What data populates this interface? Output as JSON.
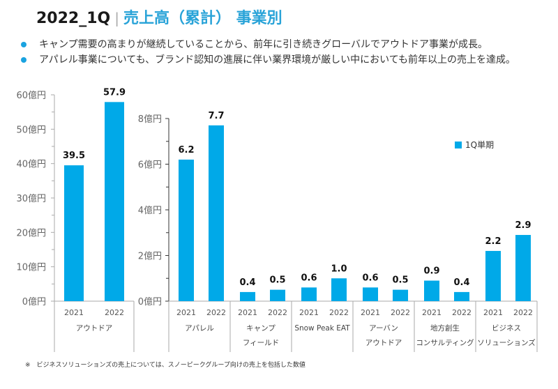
{
  "header": {
    "period": "2022_1Q",
    "separator": "|",
    "title": "売上高（累計） 事業別"
  },
  "bullets": [
    "キャンプ需要の高まりが継続していることから、前年に引き続きグローバルでアウトドア事業が成長。",
    "アパレル事業についても、ブランド認知の進展に伴い業界環境が厳しい中においても前年以上の売上を達成。"
  ],
  "footnote": "※　ビジネスソリューションズの売上については、スノーピークグループ向けの売上を包括した数値",
  "colors": {
    "bar": "#00a9e8",
    "accent": "#29a3d8"
  },
  "chart_data": [
    {
      "type": "bar",
      "title": "アウトドア",
      "unit": "億円",
      "ylim": [
        0,
        60
      ],
      "yticks": [
        "0億円",
        "10億円",
        "20億円",
        "30億円",
        "40億円",
        "50億円",
        "60億円"
      ],
      "ytick_values": [
        0,
        10,
        20,
        30,
        40,
        50,
        60
      ],
      "groups": [
        {
          "label": [
            "アウトドア"
          ],
          "categories": [
            "2021",
            "2022"
          ],
          "values": [
            39.5,
            57.9
          ],
          "labels": [
            "39.5",
            "57.9"
          ]
        }
      ]
    },
    {
      "type": "bar",
      "unit": "億円",
      "ylim": [
        0,
        8
      ],
      "yticks": [
        "0億円",
        "2億円",
        "4億円",
        "6億円",
        "8億円"
      ],
      "ytick_values": [
        0,
        2,
        4,
        6,
        8
      ],
      "legend": {
        "label": "1Q単期",
        "position": "top-right"
      },
      "groups": [
        {
          "label": [
            "アパレル"
          ],
          "categories": [
            "2021",
            "2022"
          ],
          "values": [
            6.2,
            7.7
          ],
          "labels": [
            "6.2",
            "7.7"
          ]
        },
        {
          "label": [
            "キャンプ",
            "フィールド"
          ],
          "categories": [
            "2021",
            "2022"
          ],
          "values": [
            0.4,
            0.5
          ],
          "labels": [
            "0.4",
            "0.5"
          ]
        },
        {
          "label": [
            "Snow Peak EAT"
          ],
          "categories": [
            "2021",
            "2022"
          ],
          "values": [
            0.6,
            1.0
          ],
          "labels": [
            "0.6",
            "1.0"
          ]
        },
        {
          "label": [
            "アーバン",
            "アウトドア"
          ],
          "categories": [
            "2021",
            "2022"
          ],
          "values": [
            0.6,
            0.5
          ],
          "labels": [
            "0.6",
            "0.5"
          ]
        },
        {
          "label": [
            "地方創生",
            "コンサルティング"
          ],
          "categories": [
            "2021",
            "2022"
          ],
          "values": [
            0.9,
            0.4
          ],
          "labels": [
            "0.9",
            "0.4"
          ]
        },
        {
          "label": [
            "ビジネス",
            "ソリューションズ"
          ],
          "categories": [
            "2021",
            "2022"
          ],
          "values": [
            2.2,
            2.9
          ],
          "labels": [
            "2.2",
            "2.9"
          ]
        }
      ]
    }
  ]
}
